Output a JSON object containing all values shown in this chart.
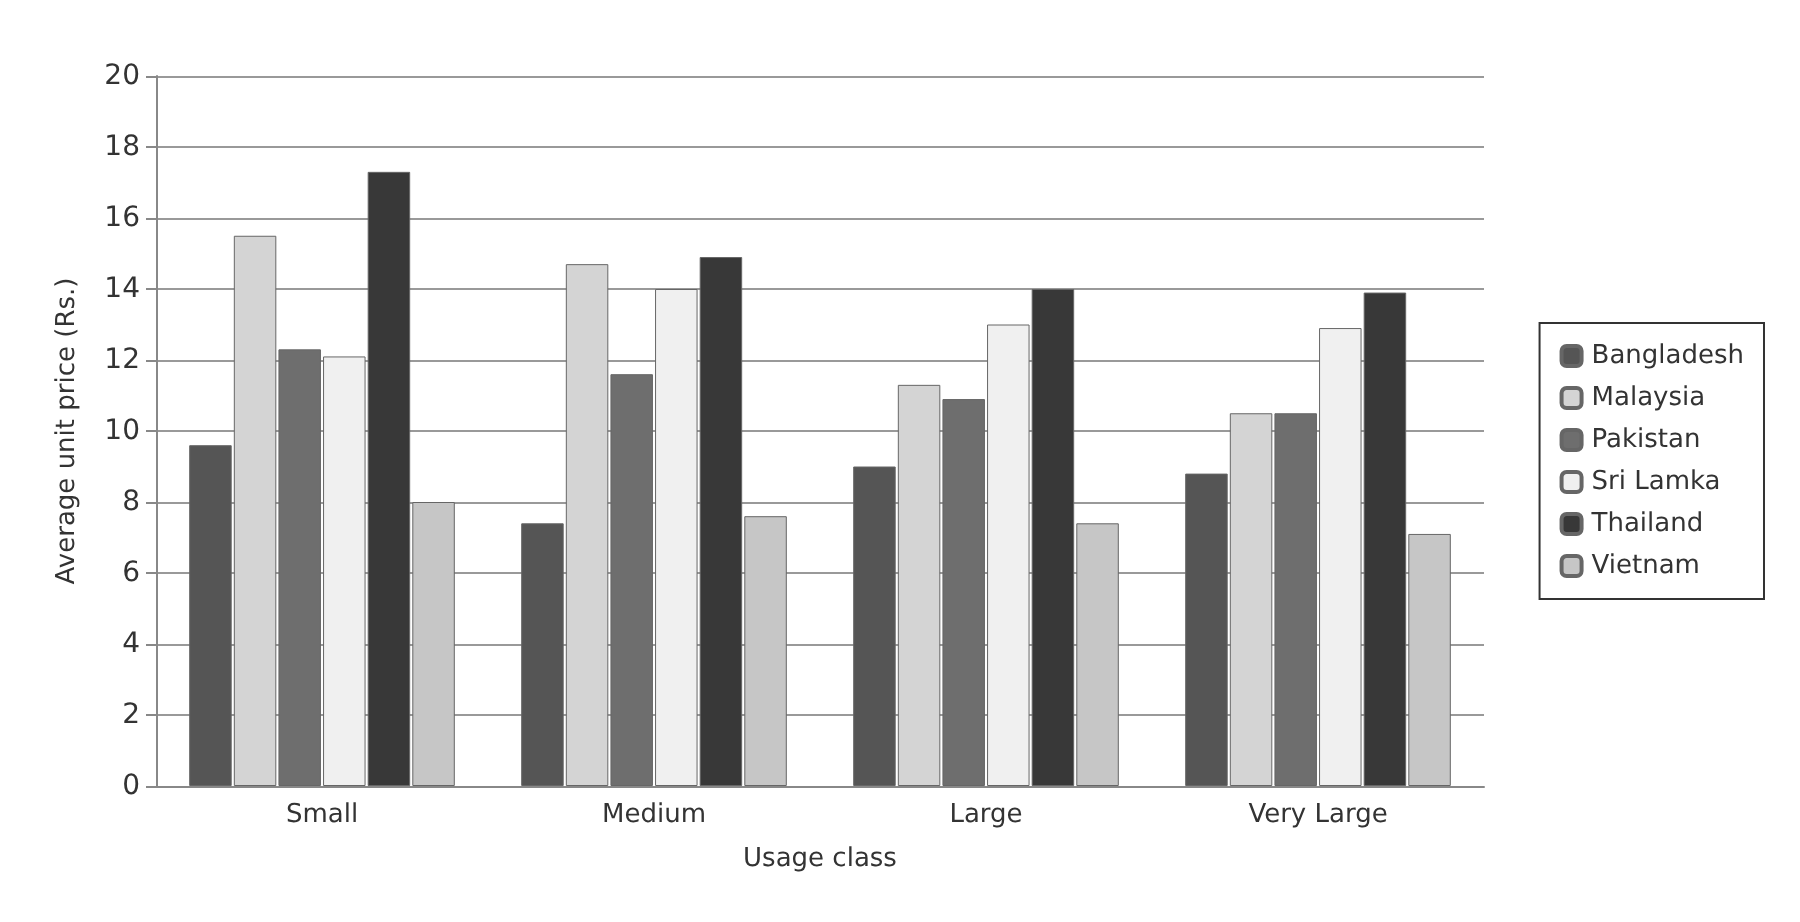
{
  "chart_data": {
    "type": "bar",
    "xlabel": "Usage class",
    "ylabel": "Average unit price (Rs.)",
    "categories": [
      "Small",
      "Medium",
      "Large",
      "Very Large"
    ],
    "series": [
      {
        "name": "Bangladesh",
        "color": "#555555",
        "values": [
          9.6,
          7.4,
          9.0,
          8.8
        ]
      },
      {
        "name": "Malaysia",
        "color": "#d4d4d4",
        "values": [
          15.5,
          14.7,
          11.3,
          10.5
        ]
      },
      {
        "name": "Pakistan",
        "color": "#6e6e6e",
        "values": [
          12.3,
          11.6,
          10.9,
          10.5
        ]
      },
      {
        "name": "Sri Lamka",
        "color": "#f0f0f0",
        "values": [
          12.1,
          14.0,
          13.0,
          12.9
        ]
      },
      {
        "name": "Thailand",
        "color": "#383838",
        "values": [
          17.3,
          14.9,
          14.0,
          13.9
        ]
      },
      {
        "name": "Vietnam",
        "color": "#c6c6c6",
        "values": [
          8.0,
          7.6,
          7.4,
          7.1
        ]
      }
    ],
    "ylim": [
      0,
      20
    ],
    "yticks": [
      0,
      2,
      4,
      6,
      8,
      10,
      12,
      14,
      16,
      18,
      20
    ],
    "grid": "y",
    "legend": "right"
  }
}
